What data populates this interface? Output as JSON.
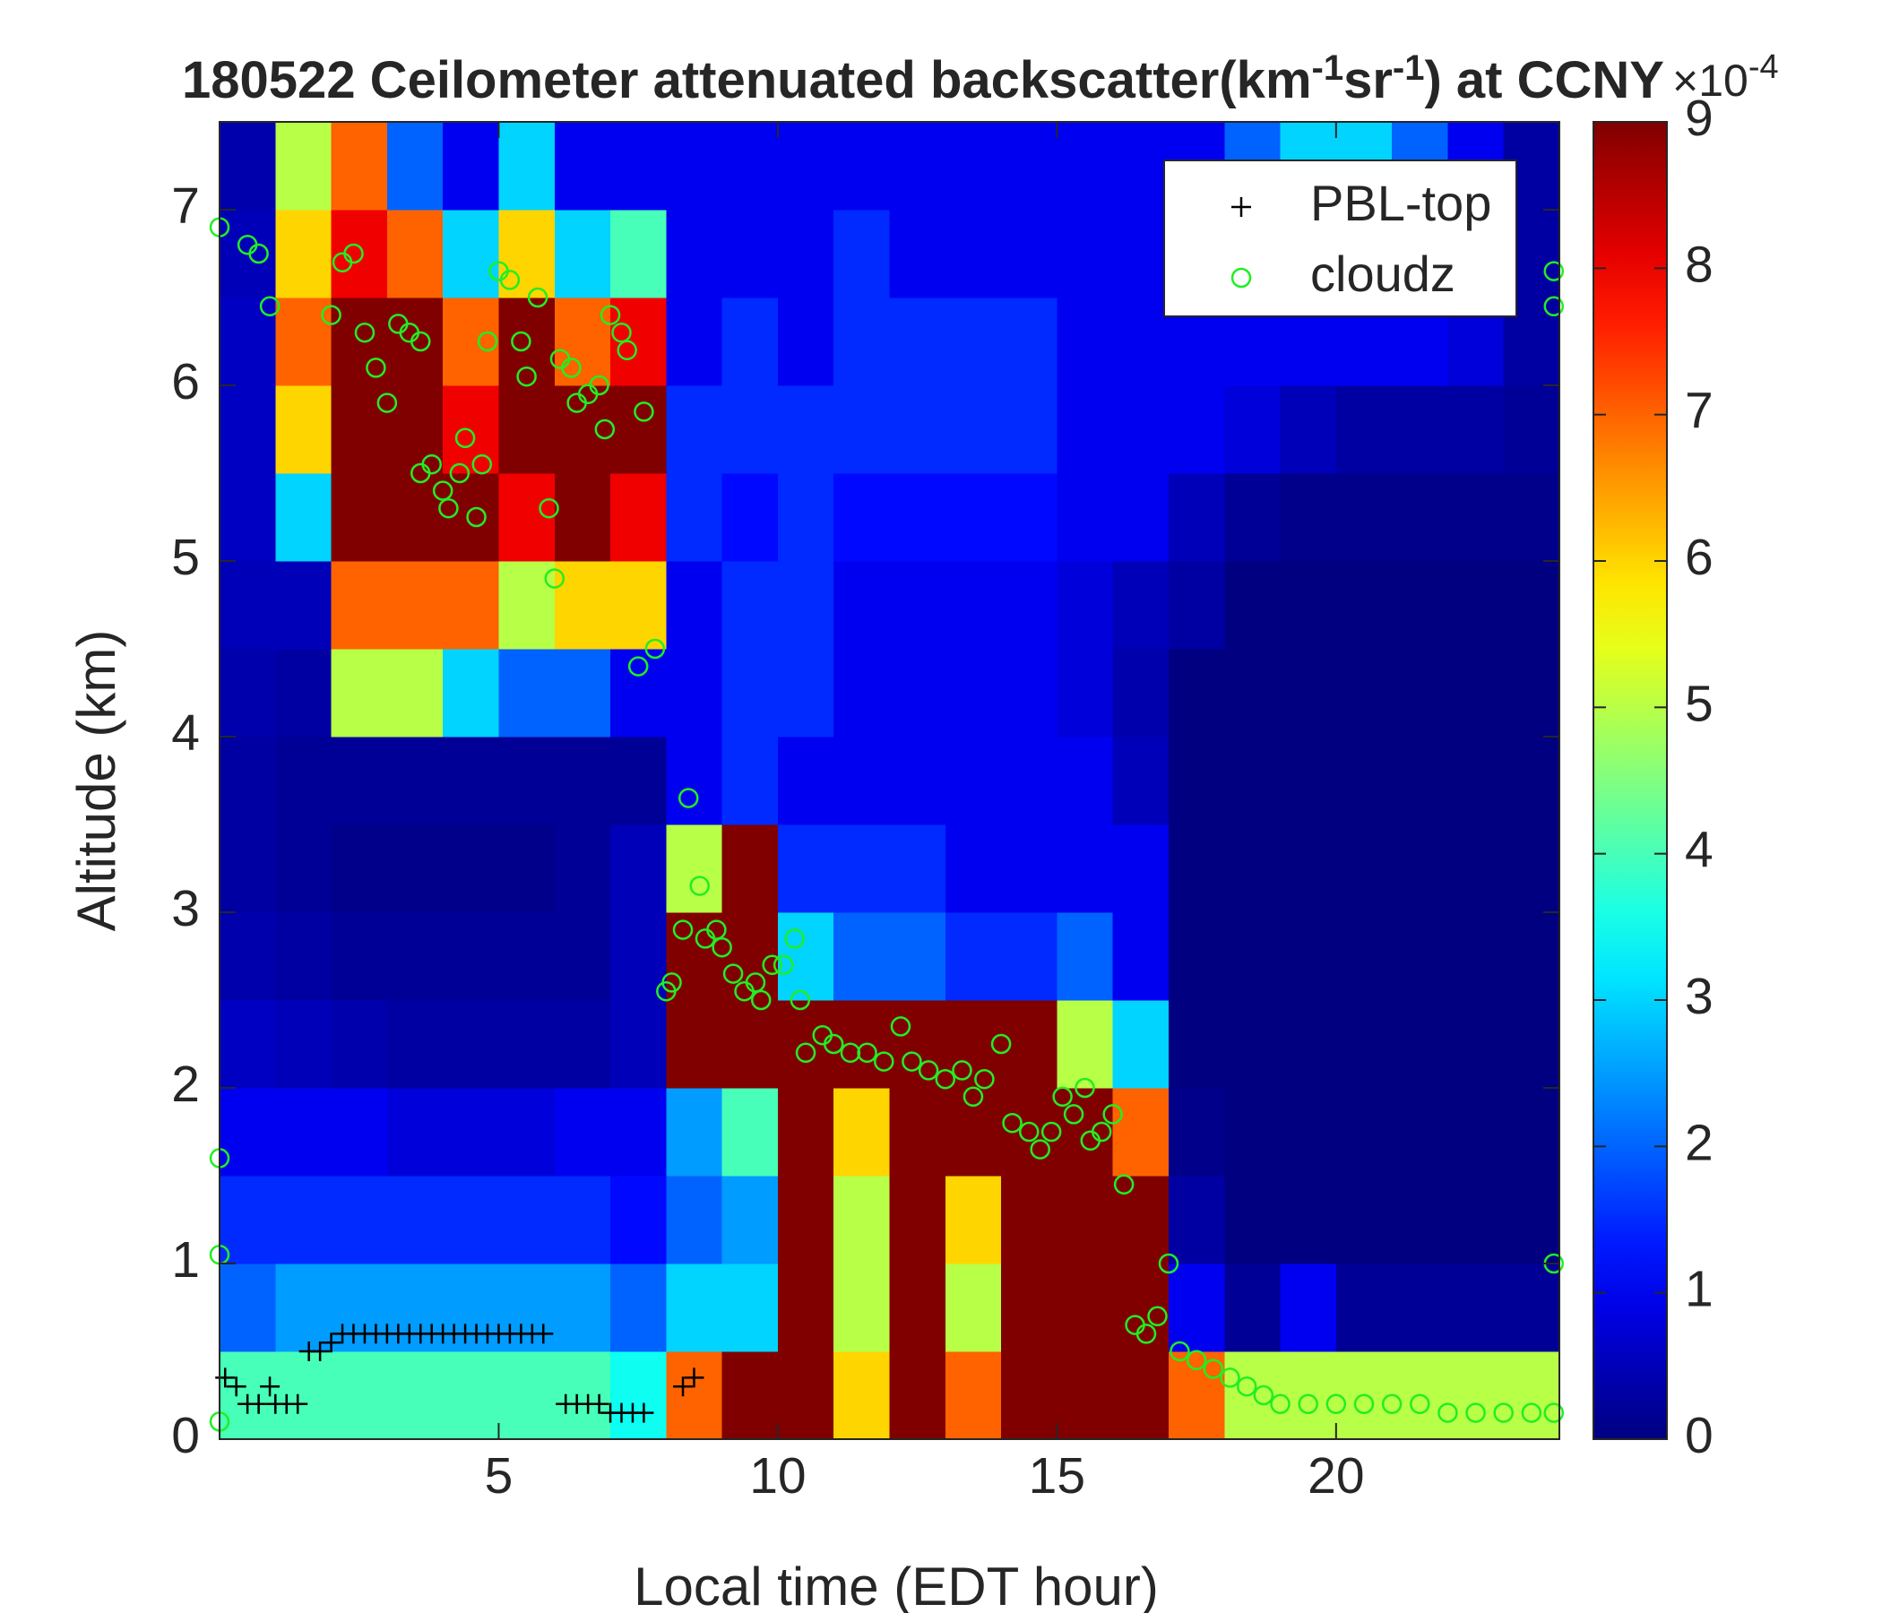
{
  "chart_data": {
    "type": "heatmap",
    "title": [
      {
        "text": "180522 Ceilometer attenuated backscatter(km",
        "sup": false
      },
      {
        "text": "-1",
        "sup": true
      },
      {
        "text": "sr",
        "sup": false
      },
      {
        "text": "-1",
        "sup": true
      },
      {
        "text": ") at CCNY",
        "sup": false
      }
    ],
    "xlabel": "Local time (EDT hour)",
    "ylabel": "Altitude (km)",
    "xlim": [
      0,
      24
    ],
    "ylim": [
      0,
      7.5
    ],
    "xticks": [
      5,
      10,
      15,
      20
    ],
    "yticks": [
      0,
      1,
      2,
      3,
      4,
      5,
      6,
      7
    ],
    "colormap": "jet",
    "colorbar": {
      "clim": [
        0,
        9
      ],
      "ticks": [
        0,
        1,
        2,
        3,
        4,
        5,
        6,
        7,
        8,
        9
      ],
      "label": "×10",
      "label_sup": "-4"
    },
    "z": [
      [
        4,
        4,
        4,
        4,
        4,
        4,
        4,
        3.5,
        7,
        9,
        9,
        6,
        9,
        7,
        9,
        9,
        9,
        7,
        5,
        5,
        5,
        5,
        5,
        5
      ],
      [
        2,
        2.5,
        2.5,
        2.5,
        2.5,
        2.5,
        2.5,
        2,
        3,
        3,
        9,
        5,
        9,
        5,
        9,
        9,
        9,
        1,
        0.2,
        1,
        0.2,
        0.2,
        0.2,
        0.2
      ],
      [
        1.5,
        1.5,
        1.5,
        1.5,
        1.5,
        1.5,
        1.5,
        1.2,
        2,
        2.5,
        9,
        5,
        9,
        6,
        9,
        9,
        9,
        0.3,
        0,
        0,
        0,
        0,
        0,
        0
      ],
      [
        1,
        1,
        1,
        0.8,
        0.8,
        0.8,
        1,
        1,
        2.5,
        4,
        9,
        6,
        9,
        9,
        9,
        9,
        7,
        0.1,
        0,
        0,
        0,
        0,
        0,
        0
      ],
      [
        0.6,
        0.5,
        0.4,
        0.3,
        0.3,
        0.3,
        0.3,
        0.5,
        9,
        9,
        9,
        9,
        9,
        9,
        9,
        5,
        3,
        0,
        0,
        0,
        0,
        0,
        0,
        0
      ],
      [
        0.4,
        0.3,
        0.2,
        0.2,
        0.2,
        0.2,
        0.2,
        0.5,
        9,
        9,
        3,
        2,
        2,
        1.5,
        1.5,
        2,
        1,
        0,
        0,
        0,
        0,
        0,
        0,
        0
      ],
      [
        0.3,
        0.2,
        0.1,
        0.1,
        0.1,
        0.1,
        0.2,
        0.5,
        5,
        9,
        1.5,
        1.5,
        1.5,
        1,
        1,
        1,
        1,
        0,
        0,
        0,
        0,
        0,
        0,
        0
      ],
      [
        0.3,
        0.2,
        0.2,
        0.2,
        0.2,
        0.2,
        0.2,
        0.2,
        1,
        1.5,
        1,
        1,
        1,
        1,
        1,
        1,
        0.5,
        0,
        0,
        0,
        0,
        0,
        0,
        0
      ],
      [
        0.4,
        0.3,
        5,
        5,
        3,
        2,
        2,
        1,
        1,
        1.5,
        1.5,
        1,
        1,
        1,
        1,
        0.8,
        0.4,
        0,
        0,
        0,
        0,
        0,
        0,
        0
      ],
      [
        0.5,
        0.5,
        7,
        7,
        7,
        5,
        6,
        6,
        1,
        1.5,
        1.5,
        1,
        1,
        1,
        1,
        0.8,
        0.5,
        0.3,
        0,
        0,
        0,
        0,
        0,
        0
      ],
      [
        0.6,
        3,
        9,
        9,
        9,
        8,
        9,
        8,
        1.5,
        1.2,
        1.5,
        1.2,
        1.2,
        1.2,
        1.2,
        1,
        1,
        0.5,
        0.2,
        0.1,
        0.1,
        0.1,
        0.1,
        0.1
      ],
      [
        0.6,
        6,
        9,
        9,
        8,
        9,
        9,
        9,
        1.5,
        1.5,
        1.5,
        1.5,
        1.5,
        1.5,
        1.5,
        1,
        1,
        1,
        0.8,
        0.5,
        0.3,
        0.3,
        0.3,
        0.2
      ],
      [
        0.6,
        7,
        9,
        9,
        7,
        9,
        7,
        8,
        1,
        1.5,
        1,
        1.5,
        1.5,
        1.5,
        1.5,
        1,
        1,
        1,
        1,
        1,
        1,
        1,
        0.8,
        0.3
      ],
      [
        0.5,
        6,
        8,
        7,
        3,
        6,
        3,
        4,
        1,
        1,
        1,
        1.5,
        1,
        1,
        1,
        1,
        1,
        1,
        1,
        1,
        1,
        0.8,
        0.5,
        0.3
      ],
      [
        0.4,
        5,
        7,
        2,
        1,
        3,
        1,
        1,
        1,
        1,
        1,
        1,
        1,
        1,
        1,
        1,
        1,
        1,
        2,
        3,
        3,
        2,
        1,
        0.3
      ]
    ],
    "series": [
      {
        "name": "PBL-top",
        "marker": "+",
        "color": "#000000",
        "x": [
          0.1,
          0.3,
          0.5,
          0.7,
          0.9,
          1.0,
          1.2,
          1.4,
          1.6,
          1.8,
          2.0,
          2.2,
          2.4,
          2.6,
          2.8,
          3.0,
          3.2,
          3.4,
          3.6,
          3.8,
          4.0,
          4.2,
          4.4,
          4.6,
          4.8,
          5.0,
          5.2,
          5.4,
          5.6,
          5.8,
          6.2,
          6.4,
          6.6,
          6.8,
          7.0,
          7.2,
          7.4,
          7.6,
          8.3,
          8.5
        ],
        "values": [
          0.35,
          0.3,
          0.2,
          0.2,
          0.3,
          0.2,
          0.2,
          0.2,
          0.5,
          0.5,
          0.55,
          0.6,
          0.6,
          0.6,
          0.6,
          0.6,
          0.6,
          0.6,
          0.6,
          0.6,
          0.6,
          0.6,
          0.6,
          0.6,
          0.6,
          0.6,
          0.6,
          0.6,
          0.6,
          0.6,
          0.2,
          0.2,
          0.2,
          0.2,
          0.15,
          0.15,
          0.15,
          0.15,
          0.3,
          0.35
        ]
      },
      {
        "name": "cloudz",
        "marker": "o",
        "color": "#22ee22",
        "x": [
          0,
          0.5,
          0.7,
          0.9,
          2.0,
          2.2,
          2.4,
          2.6,
          2.8,
          3.0,
          3.2,
          3.4,
          3.6,
          3.6,
          3.8,
          4.0,
          4.1,
          4.3,
          4.4,
          4.6,
          4.7,
          4.8,
          5.0,
          5.2,
          5.4,
          5.5,
          5.7,
          5.9,
          6.0,
          6.1,
          6.3,
          6.4,
          6.6,
          6.8,
          6.9,
          7.0,
          7.2,
          7.3,
          7.5,
          7.6,
          7.8,
          8.0,
          8.1,
          8.3,
          8.4,
          8.6,
          8.7,
          8.9,
          9.0,
          9.2,
          9.4,
          9.6,
          9.7,
          9.9,
          10.1,
          10.3,
          10.4,
          10.5,
          10.8,
          11.0,
          11.3,
          11.6,
          11.9,
          12.2,
          12.4,
          12.7,
          13.0,
          13.3,
          13.5,
          13.7,
          14.0,
          14.2,
          14.5,
          14.7,
          14.9,
          15.1,
          15.3,
          15.5,
          15.6,
          15.8,
          16.0,
          16.2,
          16.4,
          16.6,
          16.8,
          17.0,
          17.2,
          17.5,
          17.8,
          18.1,
          18.4,
          18.7,
          19.0,
          19.5,
          20,
          20.5,
          21,
          21.5,
          22,
          22.5,
          23,
          23.5,
          23.9,
          23.9,
          23.9,
          23.9,
          0,
          0,
          0
        ],
        "values": [
          6.9,
          6.8,
          6.75,
          6.45,
          6.4,
          6.7,
          6.75,
          6.3,
          6.1,
          5.9,
          6.35,
          6.3,
          6.25,
          5.5,
          5.55,
          5.4,
          5.3,
          5.5,
          5.7,
          5.25,
          5.55,
          6.25,
          6.65,
          6.6,
          6.25,
          6.05,
          6.5,
          5.3,
          4.9,
          6.15,
          6.1,
          5.9,
          5.95,
          6.0,
          5.75,
          6.4,
          6.3,
          6.2,
          4.4,
          5.85,
          4.5,
          2.55,
          2.6,
          2.9,
          3.65,
          3.15,
          2.85,
          2.9,
          2.8,
          2.65,
          2.55,
          2.6,
          2.5,
          2.7,
          2.7,
          2.85,
          2.5,
          2.2,
          2.3,
          2.25,
          2.2,
          2.2,
          2.15,
          2.35,
          2.15,
          2.1,
          2.05,
          2.1,
          1.95,
          2.05,
          2.25,
          1.8,
          1.75,
          1.65,
          1.75,
          1.95,
          1.85,
          2.0,
          1.7,
          1.75,
          1.85,
          1.45,
          0.65,
          0.6,
          0.7,
          1.0,
          0.5,
          0.45,
          0.4,
          0.35,
          0.3,
          0.25,
          0.2,
          0.2,
          0.2,
          0.2,
          0.2,
          0.2,
          0.15,
          0.15,
          0.15,
          0.15,
          0.15,
          6.65,
          6.45,
          1.0,
          1.6,
          1.05,
          0.1
        ]
      }
    ],
    "legend": "upper right"
  }
}
